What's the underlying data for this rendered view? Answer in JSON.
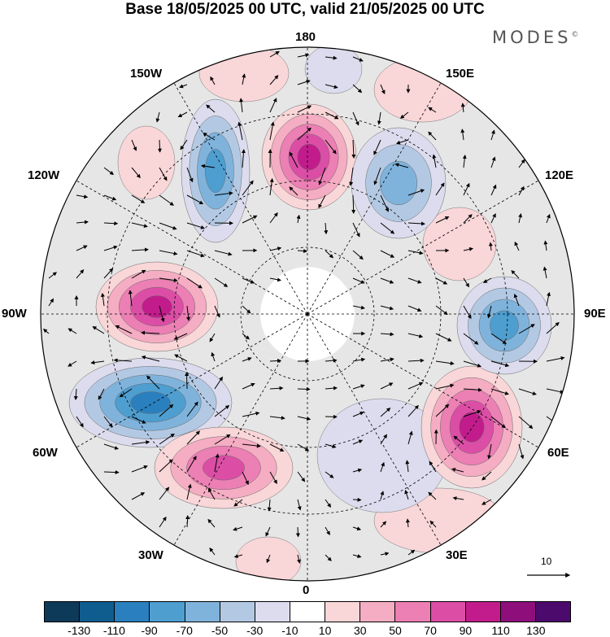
{
  "title": "Base 18/05/2025 00 UTC, valid 21/05/2025 00 UTC",
  "brand": "MODES",
  "brand_mark": "©",
  "longitude_labels": {
    "top": "180",
    "top_left": "150W",
    "top_right": "150E",
    "upper_left": "120W",
    "upper_right": "120E",
    "left": "90W",
    "right": "90E",
    "lower_left": "60W",
    "lower_right": "60E",
    "bottom_left": "30W",
    "bottom_right": "30E",
    "bottom": "0"
  },
  "vector_scale_label": "10",
  "colorbar": {
    "colors": [
      "#0e3a5a",
      "#0f5d8f",
      "#2a80bf",
      "#4e9ed0",
      "#7fb3dc",
      "#b3c9e3",
      "#dcdcee",
      "#ffffff",
      "#f9d6d8",
      "#f5adc3",
      "#ec7fb4",
      "#dc4ea6",
      "#c21c8c",
      "#8e0f7c",
      "#4d0a6d"
    ],
    "tick_labels": [
      "-130",
      "-110",
      "-90",
      "-70",
      "-50",
      "-30",
      "-10",
      "10",
      "30",
      "50",
      "70",
      "90",
      "110",
      "130"
    ]
  },
  "anomaly_centers": [
    {
      "sign": "positive",
      "level": "90"
    },
    {
      "sign": "positive",
      "level": "90"
    },
    {
      "sign": "positive",
      "level": "90"
    },
    {
      "sign": "negative",
      "level": "-90"
    },
    {
      "sign": "negative",
      "level": "-70"
    },
    {
      "sign": "negative",
      "level": "-70"
    },
    {
      "sign": "positive",
      "level": "70"
    },
    {
      "sign": "negative",
      "level": "-50"
    }
  ]
}
